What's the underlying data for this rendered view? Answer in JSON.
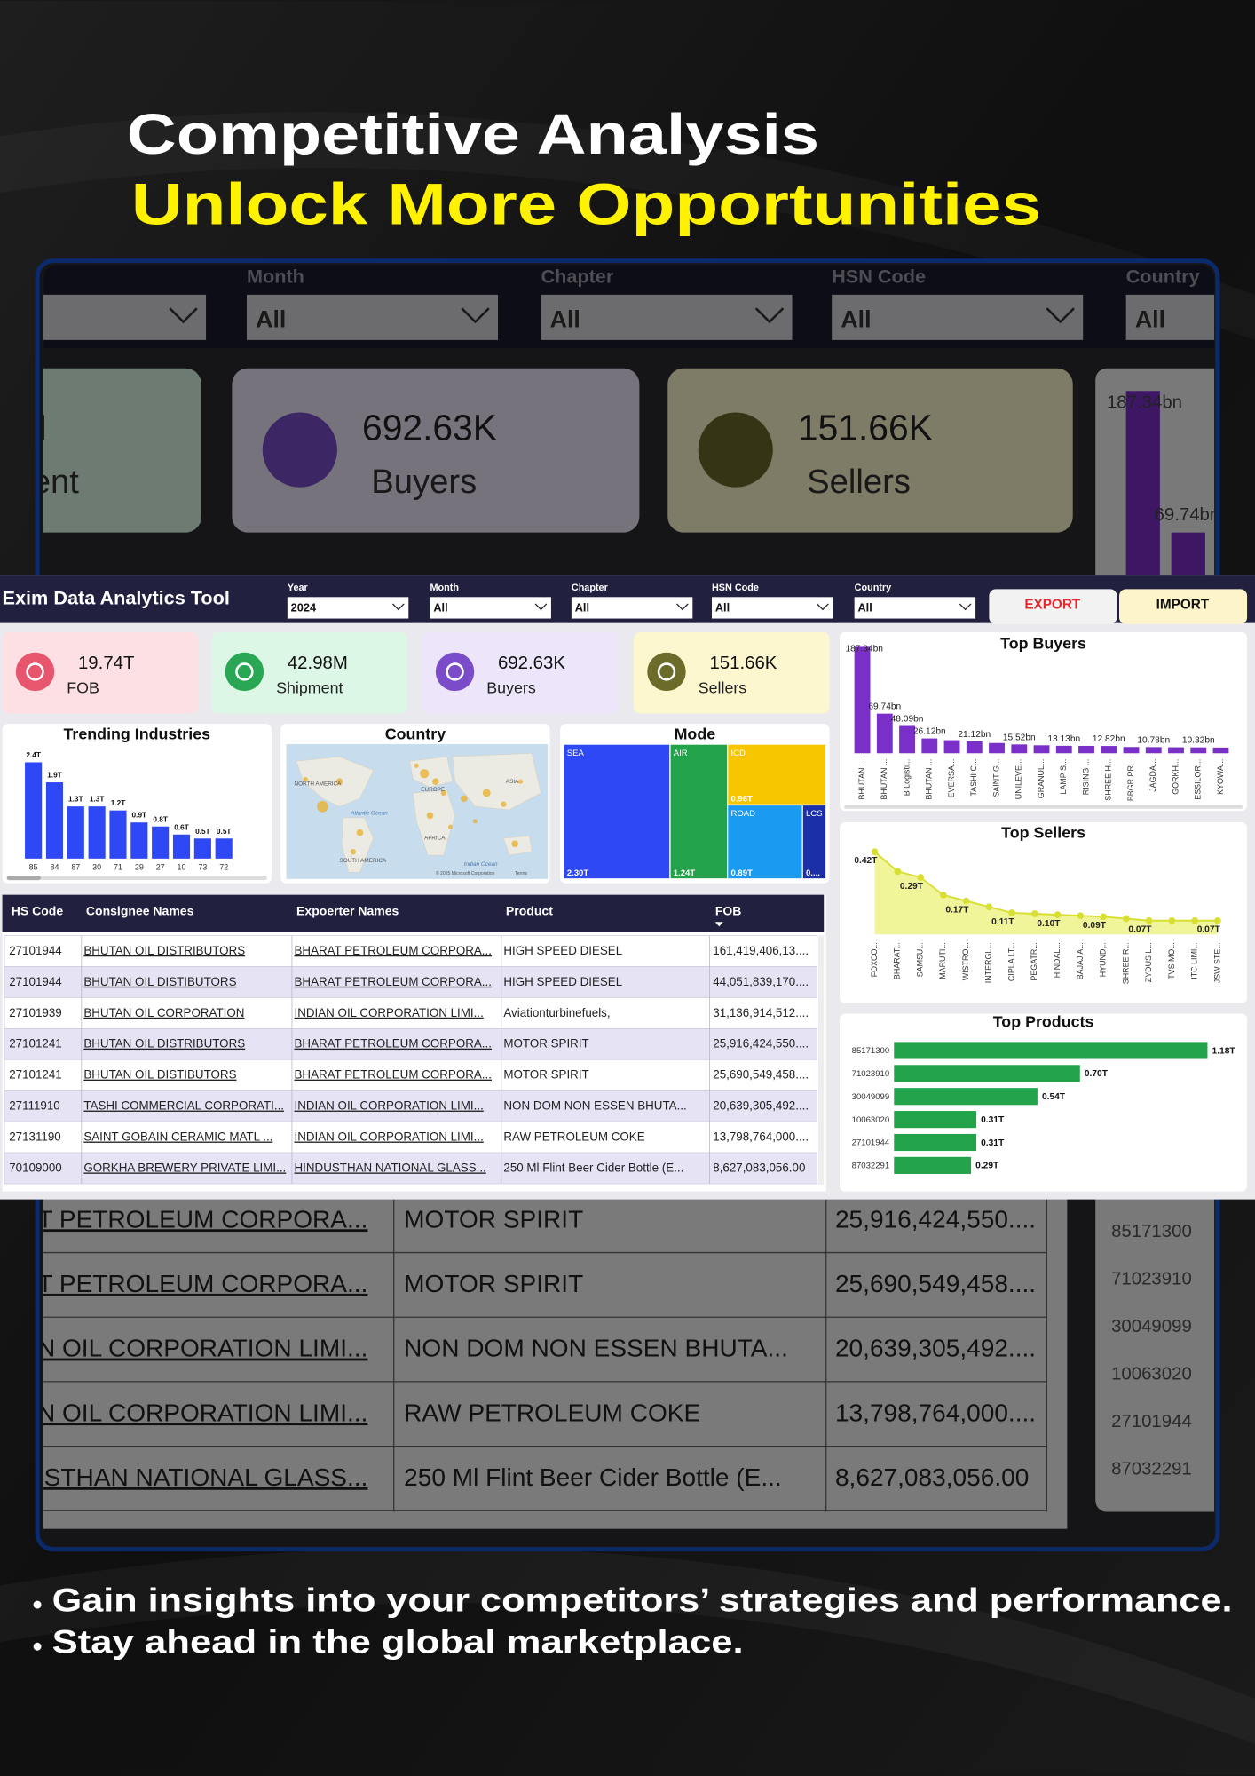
{
  "header": {
    "title": "Competitive Analysis",
    "subtitle": "Unlock More Opportunities"
  },
  "dashboard": {
    "app_title": "Exim Data Analytics Tool",
    "filters": [
      {
        "label": "Year",
        "value": "2024"
      },
      {
        "label": "Month",
        "value": "All"
      },
      {
        "label": "Chapter",
        "value": "All"
      },
      {
        "label": "HSN Code",
        "value": "All"
      },
      {
        "label": "Country",
        "value": "All"
      }
    ],
    "tabs": [
      "EXPORT",
      "IMPORT"
    ],
    "kpis": [
      {
        "value": "19.74T",
        "label": "FOB",
        "color": "#fde0e3",
        "icon": "#e8566d"
      },
      {
        "value": "42.98M",
        "label": "Shipment",
        "color": "#dcf7e6",
        "icon": "#2aa755"
      },
      {
        "value": "692.63K",
        "label": "Buyers",
        "color": "#ede6fb",
        "icon": "#7a4cc9"
      },
      {
        "value": "151.66K",
        "label": "Sellers",
        "color": "#fcf7cf",
        "icon": "#6b6b2a"
      }
    ]
  },
  "chart_data": [
    {
      "type": "bar",
      "title": "Trending Industries",
      "categories": [
        "85",
        "84",
        "87",
        "30",
        "71",
        "29",
        "27",
        "10",
        "73",
        "72"
      ],
      "values": [
        2.4,
        1.9,
        1.3,
        1.3,
        1.2,
        0.9,
        0.8,
        0.6,
        0.5,
        0.5
      ],
      "value_labels": [
        "2.4T",
        "1.9T",
        "1.3T",
        "1.3T",
        "1.2T",
        "0.9T",
        "0.8T",
        "0.6T",
        "0.5T",
        "0.5T"
      ],
      "color": "#2f48f5"
    },
    {
      "type": "map",
      "title": "Country",
      "map_labels": [
        "NORTH AMERICA",
        "EUROPE",
        "ASIA",
        "Atlantic Ocean",
        "AFRICA",
        "SOUTH AMERICA",
        "Indian Ocean",
        "© 2025 Microsoft Corporation",
        "Terms"
      ]
    },
    {
      "type": "treemap",
      "title": "Mode",
      "categories": [
        "SEA",
        "AIR",
        "ICD",
        "ROAD",
        "LCS"
      ],
      "values": [
        2.3,
        1.24,
        0.96,
        0.89,
        0.28
      ],
      "value_labels": [
        "2.30T",
        "1.24T",
        "0.96T",
        "0.89T",
        "0...."
      ],
      "colors": [
        "#2f48f5",
        "#22a34a",
        "#f7c600",
        "#1a9af0",
        "#1b2fa8"
      ]
    },
    {
      "type": "bar",
      "title": "Top Buyers",
      "categories": [
        "BHUTAN ...",
        "BHUTAN ...",
        "B Logisti...",
        "BHUTAN ...",
        "EVERSA...",
        "TASHI C...",
        "SAINT G...",
        "UNILEVE...",
        "GRANUL...",
        "LAMP S...",
        "RISING ...",
        "SHREE H...",
        "BBGR PR...",
        "JAGDA...",
        "GORKH...",
        "ESSILOR...",
        "KYOWA..."
      ],
      "values": [
        187.34,
        69.74,
        48.09,
        26.12,
        23,
        21.12,
        18,
        15.52,
        14,
        13.13,
        13,
        12.82,
        11,
        10.78,
        10.5,
        10.32,
        10
      ],
      "value_labels": [
        "187.34bn",
        "69.74bn",
        "48.09bn",
        "26.12bn",
        null,
        "21.12bn",
        null,
        "15.52bn",
        null,
        "13.13bn",
        null,
        "12.82bn",
        null,
        "10.78bn",
        null,
        "10.32bn",
        null
      ],
      "color": "#7b2fc9"
    },
    {
      "type": "area",
      "title": "Top Sellers",
      "categories": [
        "FOXCO...",
        "BHARAT...",
        "SAMSU...",
        "MARUTI...",
        "WISTRO...",
        "INTERGL...",
        "CIPLA LT...",
        "PEGATR...",
        "HINDAL...",
        "BAJAJ A...",
        "HYUND...",
        "SHREE R...",
        "ZYDUS L...",
        "TVS MO...",
        "ITC LIMI...",
        "JSW STE..."
      ],
      "values": [
        0.42,
        0.32,
        0.29,
        0.2,
        0.17,
        0.14,
        0.11,
        0.105,
        0.1,
        0.095,
        0.09,
        0.08,
        0.07,
        0.07,
        0.07,
        0.07
      ],
      "value_labels": [
        "0.42T",
        null,
        "0.29T",
        null,
        "0.17T",
        null,
        "0.11T",
        null,
        "0.10T",
        null,
        "0.09T",
        null,
        "0.07T",
        null,
        null,
        "0.07T"
      ],
      "color": "#d9de33"
    },
    {
      "type": "hbar",
      "title": "Top Products",
      "categories": [
        "85171300",
        "71023910",
        "30049099",
        "10063020",
        "27101944",
        "87032291"
      ],
      "values": [
        1.18,
        0.7,
        0.54,
        0.31,
        0.31,
        0.29
      ],
      "value_labels": [
        "1.18T",
        "0.70T",
        "0.54T",
        "0.31T",
        "0.31T",
        "0.29T"
      ],
      "color": "#22a34a"
    }
  ],
  "table": {
    "columns": [
      "HS Code",
      "Consignee Names",
      "Expoerter Names",
      "Product",
      "FOB"
    ],
    "rows": [
      [
        "27101944",
        "BHUTAN OIL DISTRIBUTORS",
        "BHARAT PETROLEUM CORPORA...",
        "HIGH SPEED DIESEL",
        "161,419,406,13...."
      ],
      [
        "27101944",
        "BHUTAN OIL DISTIBUTORS",
        "BHARAT PETROLEUM CORPORA...",
        "HIGH SPEED DIESEL",
        "44,051,839,170...."
      ],
      [
        "27101939",
        "BHUTAN OIL CORPORATION",
        "INDIAN OIL CORPORATION LIMI...",
        "Aviationturbinefuels,",
        "31,136,914,512...."
      ],
      [
        "27101241",
        "BHUTAN OIL DISTRIBUTORS",
        "BHARAT PETROLEUM CORPORA...",
        "MOTOR SPIRIT",
        "25,916,424,550...."
      ],
      [
        "27101241",
        "BHUTAN OIL DISTIBUTORS",
        "BHARAT PETROLEUM CORPORA...",
        "MOTOR SPIRIT",
        "25,690,549,458...."
      ],
      [
        "27111910",
        "TASHI COMMERCIAL CORPORATI...",
        "INDIAN OIL CORPORATION LIMI...",
        "NON DOM NON ESSEN BHUTA...",
        "20,639,305,492...."
      ],
      [
        "27131190",
        "SAINT GOBAIN CERAMIC MATL ...",
        "INDIAN OIL CORPORATION LIMI...",
        "RAW PETROLEUM COKE",
        "13,798,764,000...."
      ],
      [
        "70109000",
        "GORKHA BREWERY PRIVATE LIMI...",
        "HINDUSTHAN NATIONAL GLASS...",
        "250 Ml Flint Beer Cider Bottle (E...",
        "8,627,083,056.00"
      ]
    ]
  },
  "bullets": [
    "Gain insights into your competitors’ strategies and performance.",
    "Stay ahead in the global marketplace."
  ]
}
